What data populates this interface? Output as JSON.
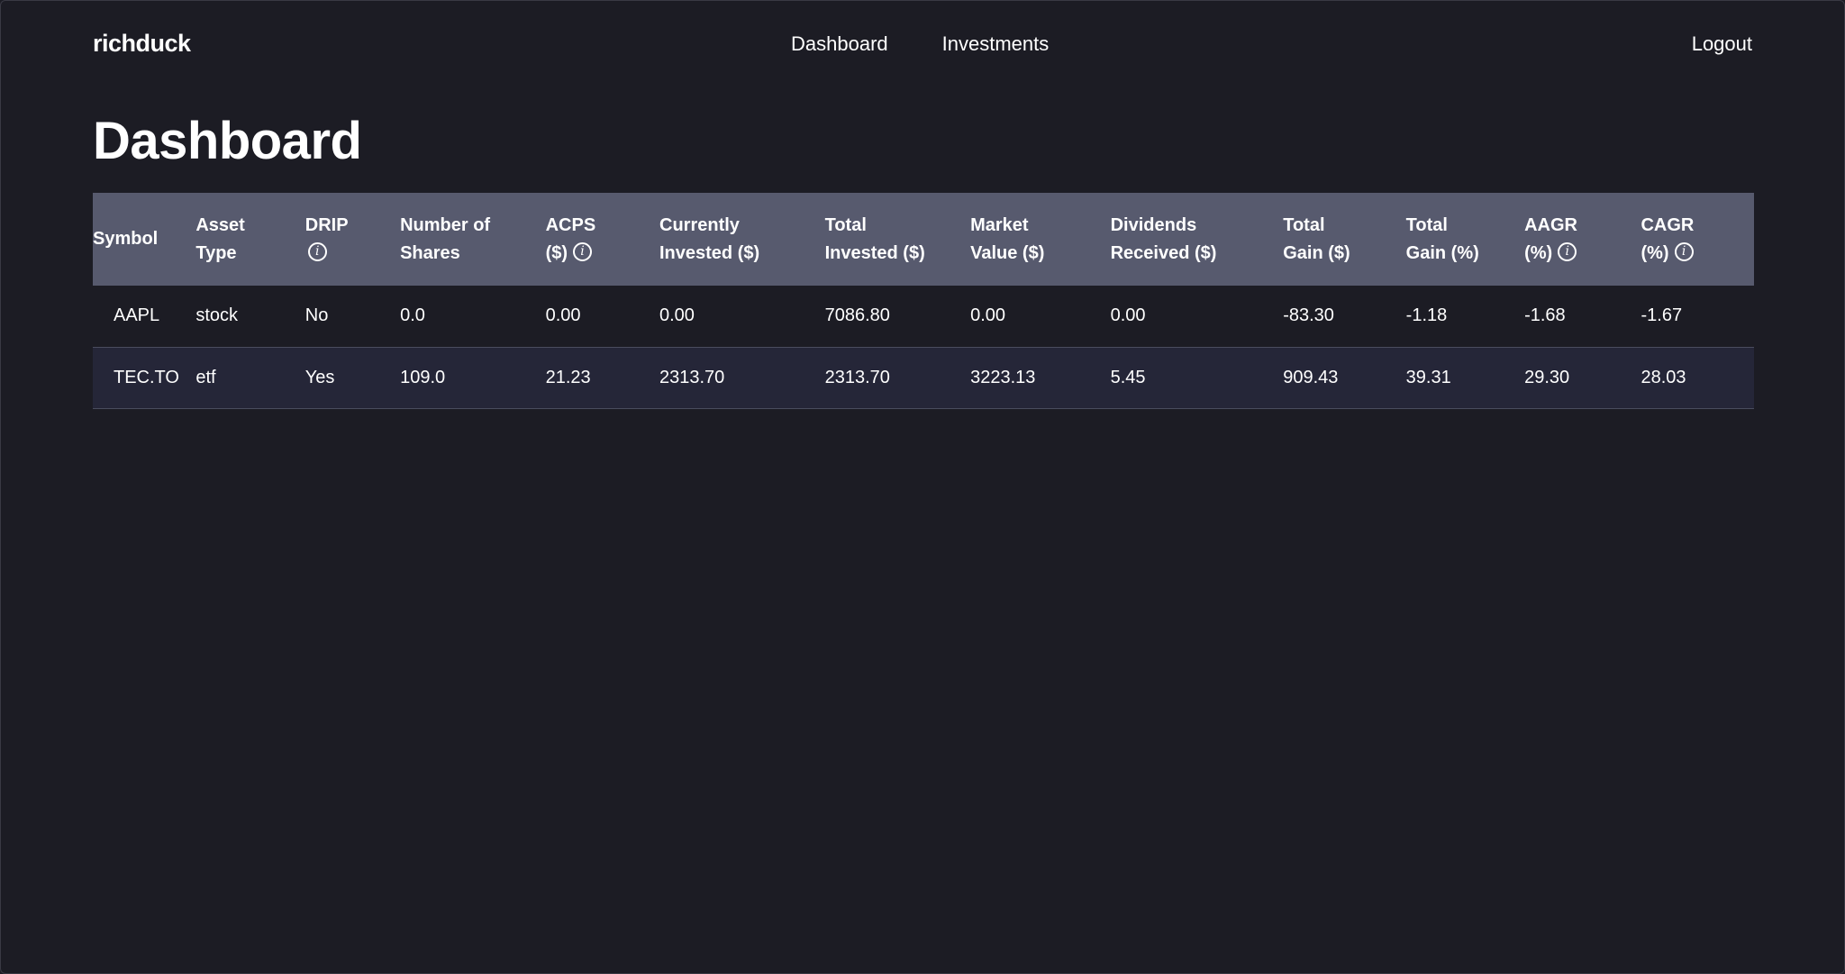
{
  "app": {
    "brand": "richduck"
  },
  "nav": {
    "items": [
      {
        "label": "Dashboard"
      },
      {
        "label": "Investments"
      }
    ],
    "logout_label": "Logout"
  },
  "page": {
    "title": "Dashboard"
  },
  "info_icon_glyph": "i",
  "table": {
    "headers": [
      {
        "line1": "Symbol",
        "line2": ""
      },
      {
        "line1": "Asset",
        "line2": "Type"
      },
      {
        "line1": "DRIP",
        "line2": ""
      },
      {
        "line1": "Number of",
        "line2": "Shares"
      },
      {
        "line1": "ACPS",
        "line2": "($)"
      },
      {
        "line1": "Currently",
        "line2": "Invested ($)"
      },
      {
        "line1": "Total",
        "line2": "Invested ($)"
      },
      {
        "line1": "Market",
        "line2": "Value ($)"
      },
      {
        "line1": "Dividends",
        "line2": "Received ($)"
      },
      {
        "line1": "Total",
        "line2": "Gain ($)"
      },
      {
        "line1": "Total",
        "line2": "Gain (%)"
      },
      {
        "line1": "AAGR",
        "line2": "(%)"
      },
      {
        "line1": "CAGR",
        "line2": "(%)"
      }
    ],
    "rows": [
      {
        "symbol": "AAPL",
        "asset_type": "stock",
        "drip": "No",
        "shares": "0.0",
        "acps": "0.00",
        "currently_invested": "0.00",
        "total_invested": "7086.80",
        "market_value": "0.00",
        "dividends_received": "0.00",
        "total_gain": "-83.30",
        "total_gain_pct": "-1.18",
        "aagr": "-1.68",
        "cagr": "-1.67"
      },
      {
        "symbol": "TEC.TO",
        "asset_type": "etf",
        "drip": "Yes",
        "shares": "109.0",
        "acps": "21.23",
        "currently_invested": "2313.70",
        "total_invested": "2313.70",
        "market_value": "3223.13",
        "dividends_received": "5.45",
        "total_gain": "909.43",
        "total_gain_pct": "39.31",
        "aagr": "29.30",
        "cagr": "28.03"
      }
    ]
  },
  "colors": {
    "background": "#1c1c24",
    "header_row": "#575a6e",
    "alt_row": "#252638",
    "negative": "#f0605a",
    "positive": "#5fd08a"
  }
}
